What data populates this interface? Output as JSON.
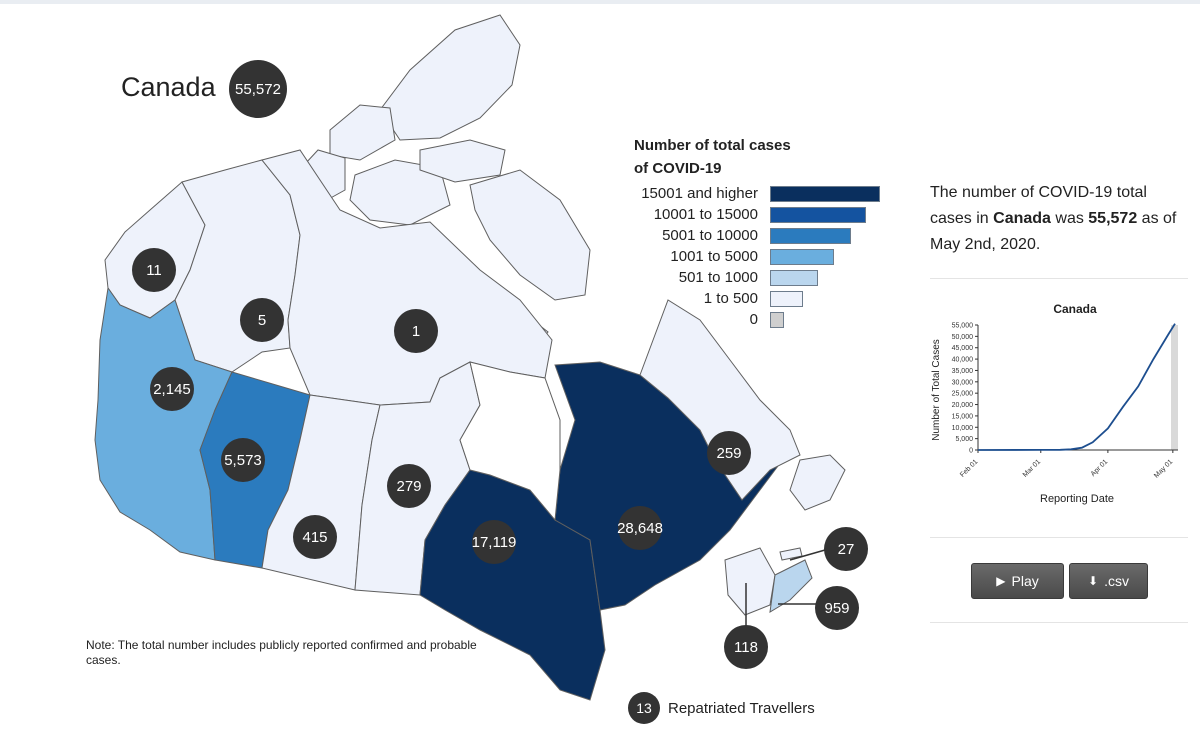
{
  "title": {
    "region": "Canada",
    "total": "55,572"
  },
  "legend": {
    "title_line1": "Number of total cases",
    "title_line2": "of COVID-19",
    "items": [
      {
        "label": "15001 and higher",
        "color": "#0a2f5e",
        "bar_level": 1.0
      },
      {
        "label": "10001 to 15000",
        "color": "#1453a0",
        "bar_level": 0.87
      },
      {
        "label": "5001 to 10000",
        "color": "#2b7bbe",
        "bar_level": 0.73
      },
      {
        "label": "1001 to 5000",
        "color": "#6aaede",
        "bar_level": 0.57
      },
      {
        "label": "501 to 1000",
        "color": "#bad6ee",
        "bar_level": 0.43
      },
      {
        "label": "1 to 500",
        "color": "#eef2fb",
        "bar_level": 0.29
      },
      {
        "label": "0",
        "color": "#cfcfcf",
        "bar_level": 0.11
      }
    ]
  },
  "regions": [
    {
      "name": "Yukon",
      "cases": "11",
      "color": "#eef2fb"
    },
    {
      "name": "Northwest Territories",
      "cases": "5",
      "color": "#eef2fb"
    },
    {
      "name": "Nunavut",
      "cases": "1",
      "color": "#eef2fb"
    },
    {
      "name": "British Columbia",
      "cases": "2,145",
      "color": "#6aaede"
    },
    {
      "name": "Alberta",
      "cases": "5,573",
      "color": "#2b7bbe"
    },
    {
      "name": "Saskatchewan",
      "cases": "415",
      "color": "#eef2fb"
    },
    {
      "name": "Manitoba",
      "cases": "279",
      "color": "#eef2fb"
    },
    {
      "name": "Ontario",
      "cases": "17,119",
      "color": "#0a2f5e"
    },
    {
      "name": "Quebec",
      "cases": "28,648",
      "color": "#0a2f5e"
    },
    {
      "name": "Newfoundland and Labrador",
      "cases": "259",
      "color": "#eef2fb"
    },
    {
      "name": "Prince Edward Island",
      "cases": "27",
      "color": "#eef2fb"
    },
    {
      "name": "Nova Scotia",
      "cases": "959",
      "color": "#bad6ee"
    },
    {
      "name": "New Brunswick",
      "cases": "118",
      "color": "#eef2fb"
    }
  ],
  "repatriated": {
    "count": "13",
    "label": "Repatriated Travellers"
  },
  "note": "Note: The total number includes publicly reported confirmed and probable cases.",
  "summary": {
    "part1": "The number of COVID-19 total cases in ",
    "region": "Canada",
    "part2": " was ",
    "total": "55,572",
    "part3": " as of May 2nd, 2020."
  },
  "chart_data": {
    "type": "line",
    "title": "Canada",
    "xlabel": "Reporting Date",
    "ylabel": "Number of Total Cases",
    "x_ticks": [
      "Feb 01",
      "Mar 01",
      "Apr 01",
      "May 01"
    ],
    "y_ticks": [
      "0",
      "5,000",
      "10,000",
      "15,000",
      "20,000",
      "25,000",
      "30,000",
      "35,000",
      "40,000",
      "45,000",
      "50,000",
      "55,000"
    ],
    "ylim": [
      0,
      55000
    ],
    "x": [
      "2020-02-01",
      "2020-03-01",
      "2020-03-10",
      "2020-03-15",
      "2020-03-20",
      "2020-03-25",
      "2020-04-01",
      "2020-04-08",
      "2020-04-15",
      "2020-04-22",
      "2020-04-29",
      "2020-05-02"
    ],
    "series": [
      {
        "values": [
          4,
          24,
          80,
          300,
          1000,
          3400,
          9500,
          19000,
          28000,
          40000,
          51000,
          55572
        ]
      }
    ],
    "line_color": "#1d4e8f",
    "highlight_color": "#d9d9d9"
  },
  "buttons": {
    "play": "Play",
    "csv": ".csv"
  }
}
